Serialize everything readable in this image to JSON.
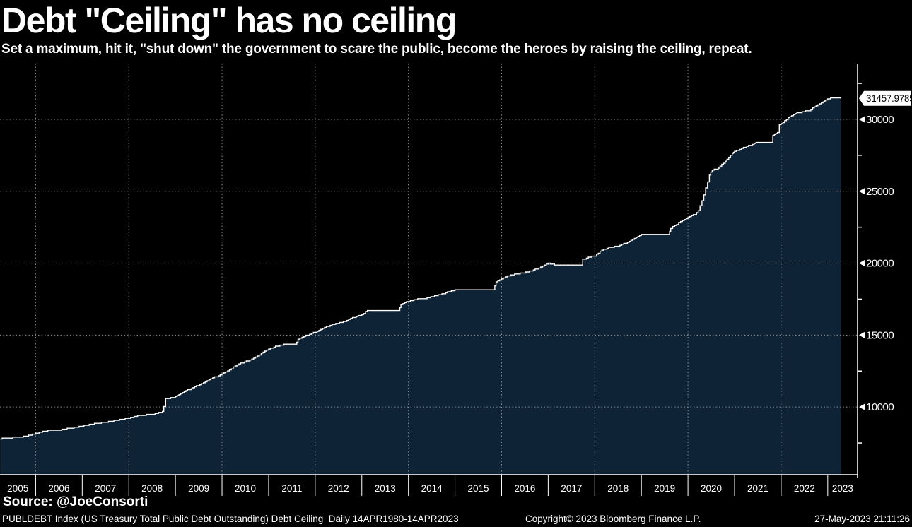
{
  "header": {
    "title": "Debt \"Ceiling\" has no ceiling",
    "subtitle": "Set a maximum, hit it, \"shut down\" the government to scare the public, become the heroes by raising the ceiling, repeat."
  },
  "source_line": "Source: @JoeConsorti",
  "footer": {
    "left": "PUBLDEBT Index (US Treasury Total Public Debt Outstanding) Debt Ceiling  Daily 14APR1980-14APR2023",
    "copyright": "Copyright© 2023 Bloomberg Finance L.P.",
    "datetime": "27-May-2023 21:11:26"
  },
  "chart_data": {
    "type": "area",
    "title": "Debt \"Ceiling\" has no ceiling",
    "subtitle": "Set a maximum, hit it, \"shut down\" the government to scare the public, become the heroes by raising the ceiling, repeat.",
    "x_axis": {
      "labels": [
        "2005",
        "2006",
        "2007",
        "2008",
        "2009",
        "2010",
        "2011",
        "2012",
        "2013",
        "2014",
        "2015",
        "2016",
        "2017",
        "2018",
        "2019",
        "2020",
        "2021",
        "2022",
        "2023"
      ],
      "range_years": [
        2005.235,
        2023.64
      ],
      "gridline_years": [
        2006,
        2008,
        2010,
        2012,
        2014,
        2016,
        2018,
        2020,
        2022
      ]
    },
    "y_axis": {
      "side": "right",
      "ticks": [
        10000,
        15000,
        20000,
        25000,
        30000
      ],
      "minor_ticks": [
        7500,
        12500,
        17500,
        22500,
        27500,
        32500
      ],
      "ylim": [
        5292,
        33878
      ]
    },
    "grid": "dotted",
    "legend": "none",
    "last_value": {
      "label": "31457.9785",
      "value": 31457.9785
    },
    "series": [
      {
        "name": "PUBLDEBT Index",
        "points": [
          [
            2005.24,
            7800
          ],
          [
            2005.4,
            7850
          ],
          [
            2005.55,
            7880
          ],
          [
            2005.7,
            7930
          ],
          [
            2005.85,
            8030
          ],
          [
            2006.0,
            8170
          ],
          [
            2006.15,
            8290
          ],
          [
            2006.3,
            8380
          ],
          [
            2006.45,
            8390
          ],
          [
            2006.6,
            8450
          ],
          [
            2006.75,
            8530
          ],
          [
            2006.9,
            8620
          ],
          [
            2007.0,
            8680
          ],
          [
            2007.15,
            8790
          ],
          [
            2007.3,
            8870
          ],
          [
            2007.45,
            8930
          ],
          [
            2007.6,
            9010
          ],
          [
            2007.8,
            9110
          ],
          [
            2008.0,
            9230
          ],
          [
            2008.15,
            9380
          ],
          [
            2008.3,
            9440
          ],
          [
            2008.45,
            9470
          ],
          [
            2008.6,
            9560
          ],
          [
            2008.72,
            9700
          ],
          [
            2008.75,
            10050
          ],
          [
            2008.79,
            10560
          ],
          [
            2008.9,
            10640
          ],
          [
            2009.0,
            10700
          ],
          [
            2009.15,
            11020
          ],
          [
            2009.3,
            11240
          ],
          [
            2009.45,
            11450
          ],
          [
            2009.6,
            11680
          ],
          [
            2009.8,
            12010
          ],
          [
            2010.0,
            12310
          ],
          [
            2010.2,
            12680
          ],
          [
            2010.4,
            13050
          ],
          [
            2010.6,
            13270
          ],
          [
            2010.8,
            13640
          ],
          [
            2011.0,
            14030
          ],
          [
            2011.15,
            14220
          ],
          [
            2011.33,
            14340
          ],
          [
            2011.58,
            14340
          ],
          [
            2011.63,
            14690
          ],
          [
            2011.8,
            14960
          ],
          [
            2012.0,
            15220
          ],
          [
            2012.2,
            15560
          ],
          [
            2012.4,
            15760
          ],
          [
            2012.6,
            15930
          ],
          [
            2012.8,
            16200
          ],
          [
            2013.0,
            16430
          ],
          [
            2013.12,
            16710
          ],
          [
            2013.35,
            16740
          ],
          [
            2013.79,
            16740
          ],
          [
            2013.84,
            17120
          ],
          [
            2014.0,
            17350
          ],
          [
            2014.2,
            17500
          ],
          [
            2014.4,
            17580
          ],
          [
            2014.6,
            17750
          ],
          [
            2014.8,
            17950
          ],
          [
            2015.0,
            18140
          ],
          [
            2015.2,
            18150
          ],
          [
            2015.5,
            18150
          ],
          [
            2015.83,
            18150
          ],
          [
            2015.88,
            18720
          ],
          [
            2016.0,
            18920
          ],
          [
            2016.2,
            19190
          ],
          [
            2016.4,
            19300
          ],
          [
            2016.6,
            19430
          ],
          [
            2016.8,
            19660
          ],
          [
            2017.0,
            19980
          ],
          [
            2017.18,
            19850
          ],
          [
            2017.45,
            19850
          ],
          [
            2017.7,
            19850
          ],
          [
            2017.74,
            20250
          ],
          [
            2017.9,
            20440
          ],
          [
            2018.0,
            20490
          ],
          [
            2018.15,
            20910
          ],
          [
            2018.3,
            21090
          ],
          [
            2018.5,
            21200
          ],
          [
            2018.7,
            21460
          ],
          [
            2018.85,
            21710
          ],
          [
            2019.0,
            21970
          ],
          [
            2019.12,
            22030
          ],
          [
            2019.35,
            22020
          ],
          [
            2019.58,
            22020
          ],
          [
            2019.63,
            22430
          ],
          [
            2019.8,
            22810
          ],
          [
            2020.0,
            23200
          ],
          [
            2020.15,
            23410
          ],
          [
            2020.22,
            23650
          ],
          [
            2020.3,
            24320
          ],
          [
            2020.38,
            25230
          ],
          [
            2020.46,
            26120
          ],
          [
            2020.52,
            26480
          ],
          [
            2020.65,
            26610
          ],
          [
            2020.8,
            27100
          ],
          [
            2020.95,
            27620
          ],
          [
            2021.0,
            27750
          ],
          [
            2021.15,
            28010
          ],
          [
            2021.3,
            28160
          ],
          [
            2021.5,
            28430
          ],
          [
            2021.78,
            28430
          ],
          [
            2021.82,
            28910
          ],
          [
            2021.92,
            29100
          ],
          [
            2021.96,
            29620
          ],
          [
            2022.0,
            29680
          ],
          [
            2022.15,
            30110
          ],
          [
            2022.3,
            30400
          ],
          [
            2022.45,
            30510
          ],
          [
            2022.6,
            30620
          ],
          [
            2022.75,
            30940
          ],
          [
            2022.9,
            31210
          ],
          [
            2023.0,
            31420
          ],
          [
            2023.06,
            31460
          ],
          [
            2023.285,
            31457.9785
          ]
        ]
      }
    ],
    "colors": {
      "background": "#000000",
      "area_fill": "#0e2336",
      "line": "#ffffff",
      "grid": "#9b9b9b",
      "axis": "#ffffff",
      "label_box_bg": "#ffffff",
      "label_box_text": "#000000"
    }
  }
}
